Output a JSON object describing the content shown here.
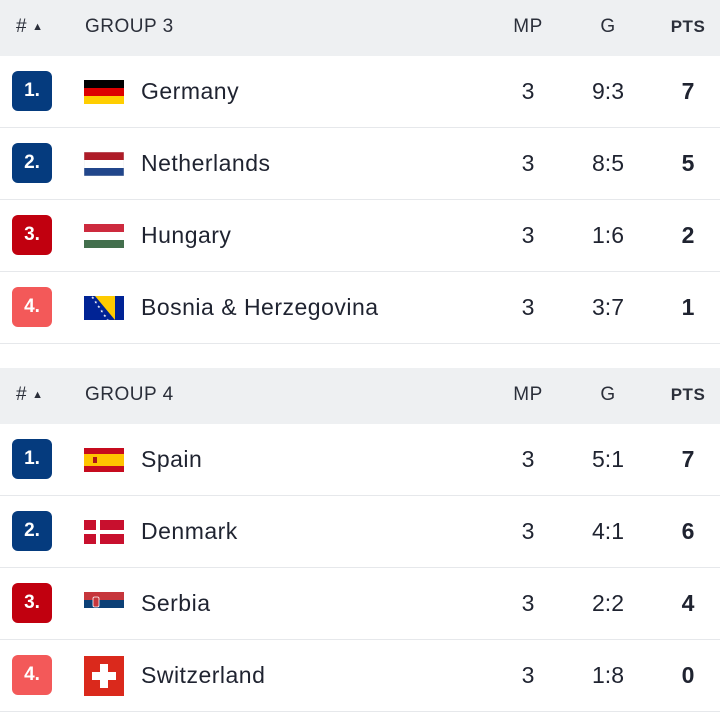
{
  "colors": {
    "rank_top": "#053b7e",
    "rank_third": "#c1000f",
    "rank_fourth": "#f35959",
    "header_bg": "#eef0f2"
  },
  "groups": [
    {
      "header": {
        "hash": "#",
        "sort_icon": "triangle-up-icon",
        "name": "GROUP 3",
        "mp": "MP",
        "g": "G",
        "pts": "PTS"
      },
      "rows": [
        {
          "rank": "1.",
          "team": "Germany",
          "flag": "germany-flag-icon",
          "mp": "3",
          "g": "9:3",
          "pts": "7"
        },
        {
          "rank": "2.",
          "team": "Netherlands",
          "flag": "netherlands-flag-icon",
          "mp": "3",
          "g": "8:5",
          "pts": "5"
        },
        {
          "rank": "3.",
          "team": "Hungary",
          "flag": "hungary-flag-icon",
          "mp": "3",
          "g": "1:6",
          "pts": "2"
        },
        {
          "rank": "4.",
          "team": "Bosnia & Herzegovina",
          "flag": "bosnia-flag-icon",
          "mp": "3",
          "g": "3:7",
          "pts": "1"
        }
      ]
    },
    {
      "header": {
        "hash": "#",
        "sort_icon": "triangle-up-icon",
        "name": "GROUP 4",
        "mp": "MP",
        "g": "G",
        "pts": "PTS"
      },
      "rows": [
        {
          "rank": "1.",
          "team": "Spain",
          "flag": "spain-flag-icon",
          "mp": "3",
          "g": "5:1",
          "pts": "7"
        },
        {
          "rank": "2.",
          "team": "Denmark",
          "flag": "denmark-flag-icon",
          "mp": "3",
          "g": "4:1",
          "pts": "6"
        },
        {
          "rank": "3.",
          "team": "Serbia",
          "flag": "serbia-flag-icon",
          "mp": "3",
          "g": "2:2",
          "pts": "4"
        },
        {
          "rank": "4.",
          "team": "Switzerland",
          "flag": "switzerland-flag-icon",
          "mp": "3",
          "g": "1:8",
          "pts": "0"
        }
      ]
    }
  ]
}
